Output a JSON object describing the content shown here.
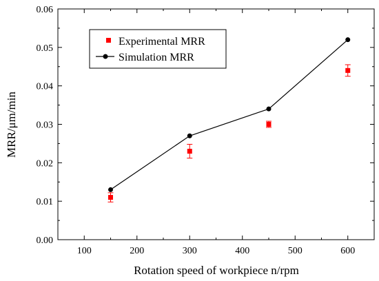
{
  "chart_data": {
    "type": "scatter",
    "title": "",
    "xlabel": "Rotation speed of workpiece n/rpm",
    "ylabel": "MRR/μm/min",
    "xlim": [
      50,
      650
    ],
    "ylim": [
      0.0,
      0.06
    ],
    "xticks": [
      "100",
      "200",
      "300",
      "400",
      "500",
      "600"
    ],
    "yticks": [
      "0.00",
      "0.01",
      "0.02",
      "0.03",
      "0.04",
      "0.05",
      "0.06"
    ],
    "grid": false,
    "legend_position": "top-left",
    "series": [
      {
        "name": "Experimental MRR",
        "marker": "square",
        "color": "#ff0000",
        "line": false,
        "x": [
          150,
          300,
          450,
          600
        ],
        "y": [
          0.011,
          0.023,
          0.03,
          0.044
        ],
        "error": [
          0.0012,
          0.0018,
          0.0008,
          0.0015
        ]
      },
      {
        "name": "Simulation MRR",
        "marker": "circle",
        "color": "#000000",
        "line": true,
        "x": [
          150,
          300,
          450,
          600
        ],
        "y": [
          0.013,
          0.027,
          0.034,
          0.052
        ]
      }
    ]
  }
}
